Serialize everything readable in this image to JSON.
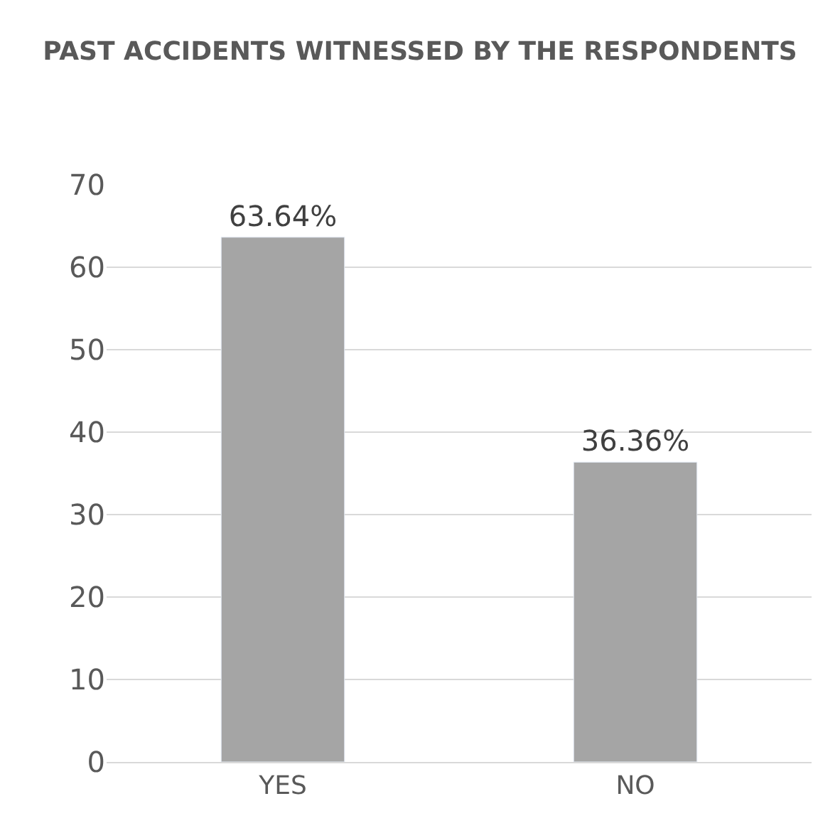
{
  "chart_data": {
    "type": "bar",
    "title": "PAST ACCIDENTS WITNESSED BY THE RESPONDENTS",
    "categories": [
      "YES",
      "NO"
    ],
    "values": [
      63.64,
      36.36
    ],
    "value_labels": [
      "63.64%",
      "36.36%"
    ],
    "color": "#a5a5a5",
    "ylim": [
      0,
      70
    ],
    "yticks": [
      0,
      10,
      20,
      30,
      40,
      50,
      60,
      70
    ],
    "grid": "y",
    "legend": false
  }
}
